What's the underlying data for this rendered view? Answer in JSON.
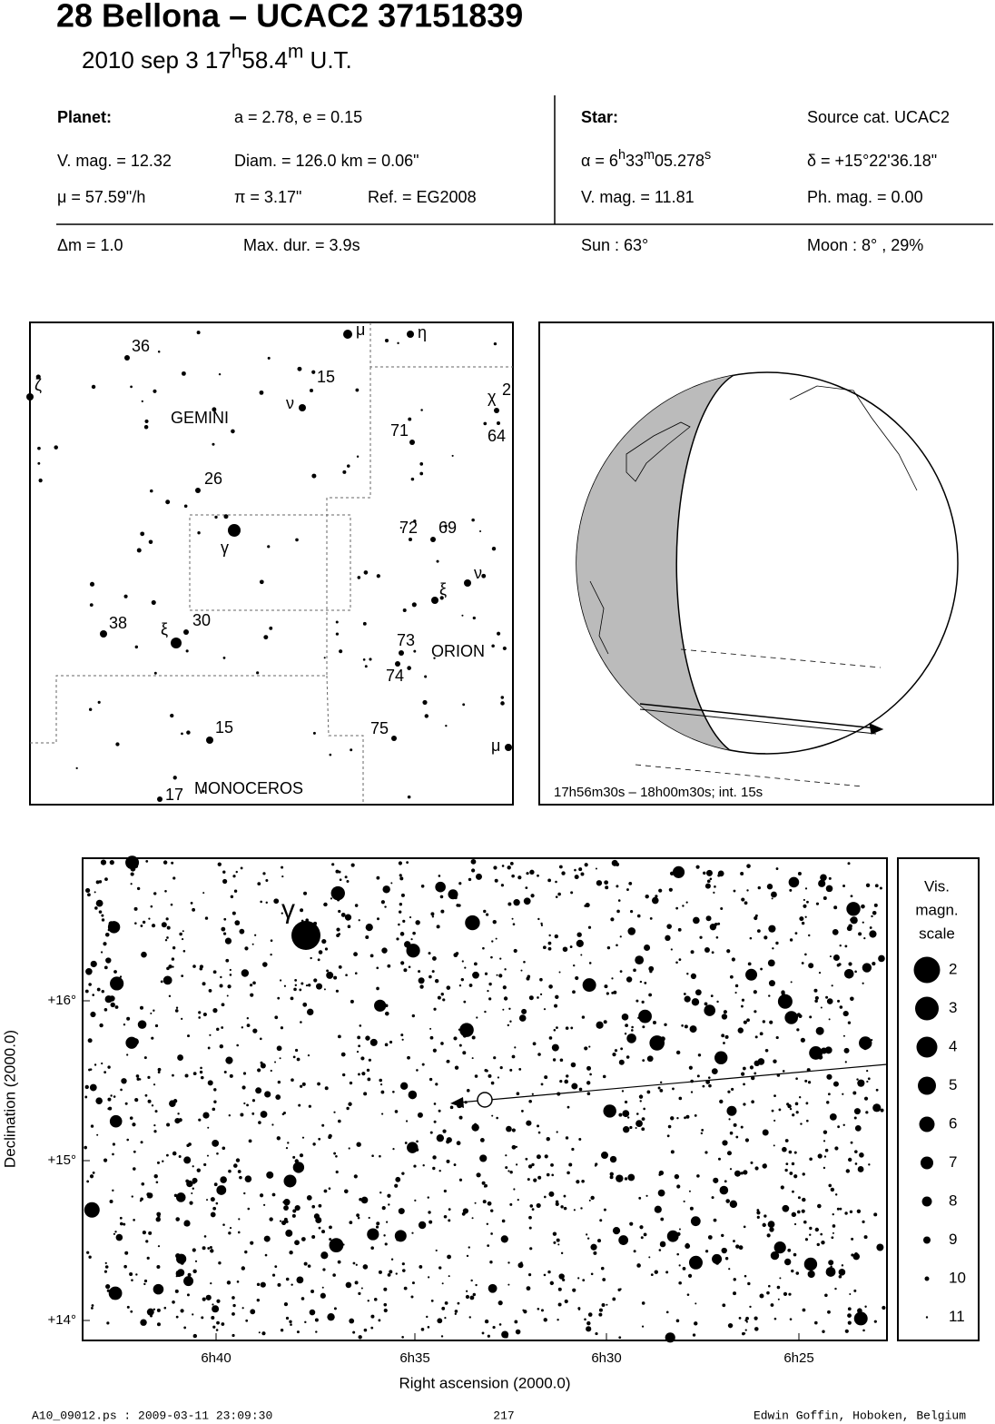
{
  "header": {
    "title": "28 Bellona  –  UCAC2 37151839",
    "subtitle": [
      "2010 sep  3  17",
      "h",
      "58.4",
      "m",
      " U.T."
    ]
  },
  "info": {
    "rows": [
      [
        "Planet:",
        "a = 2.78, e = 0.15",
        "Star:",
        "Source cat.  UCAC2"
      ],
      [
        "V. mag. = 12.32",
        "Diam. = 126.0 km = 0.06\"",
        [
          "α =  6",
          "h",
          "33",
          "m",
          "05.278",
          "s"
        ],
        "δ = +15°22'36.18\""
      ],
      [
        "μ =  57.59\"/h",
        "π =  3.17\"",
        "Ref. = EG2008",
        "V. mag. = 11.81",
        "Ph. mag. =  0.00"
      ],
      [
        "Δm = 1.0",
        "Max. dur. = 3.9s",
        "Sun :  63°",
        "Moon :   8° , 29%"
      ]
    ]
  },
  "finder": {
    "labels": [
      "36",
      "ζ",
      "μ",
      "η",
      "15",
      "ν",
      "GEMINI",
      "χ",
      "2",
      "71",
      "64",
      "26",
      "72",
      "69",
      "γ",
      "ν",
      "ξ",
      "38",
      "30",
      "ξ",
      "73",
      "ORION",
      "74",
      "15",
      "75",
      "μ",
      "MONOCEROS",
      "17"
    ]
  },
  "globe": {
    "caption": "17h56m30s – 18h00m30s; int. 15s"
  },
  "chart": {
    "star_label": "γ",
    "yticks": [
      "+16°",
      "+15°",
      "+14°"
    ],
    "xticks": [
      "6h40",
      "6h35",
      "6h30",
      "6h25"
    ],
    "ylabel": "Declination (2000.0)",
    "xlabel": "Right ascension (2000.0)",
    "scale": {
      "title": [
        "Vis.",
        "magn.",
        "scale"
      ],
      "magnitudes": [
        2,
        3,
        4,
        5,
        6,
        7,
        8,
        9,
        10,
        11
      ]
    }
  },
  "footer": {
    "left": "A10_09012.ps : 2009-03-11 23:09:30",
    "center": "217",
    "right": "Edwin Goffin, Hoboken, Belgium"
  }
}
